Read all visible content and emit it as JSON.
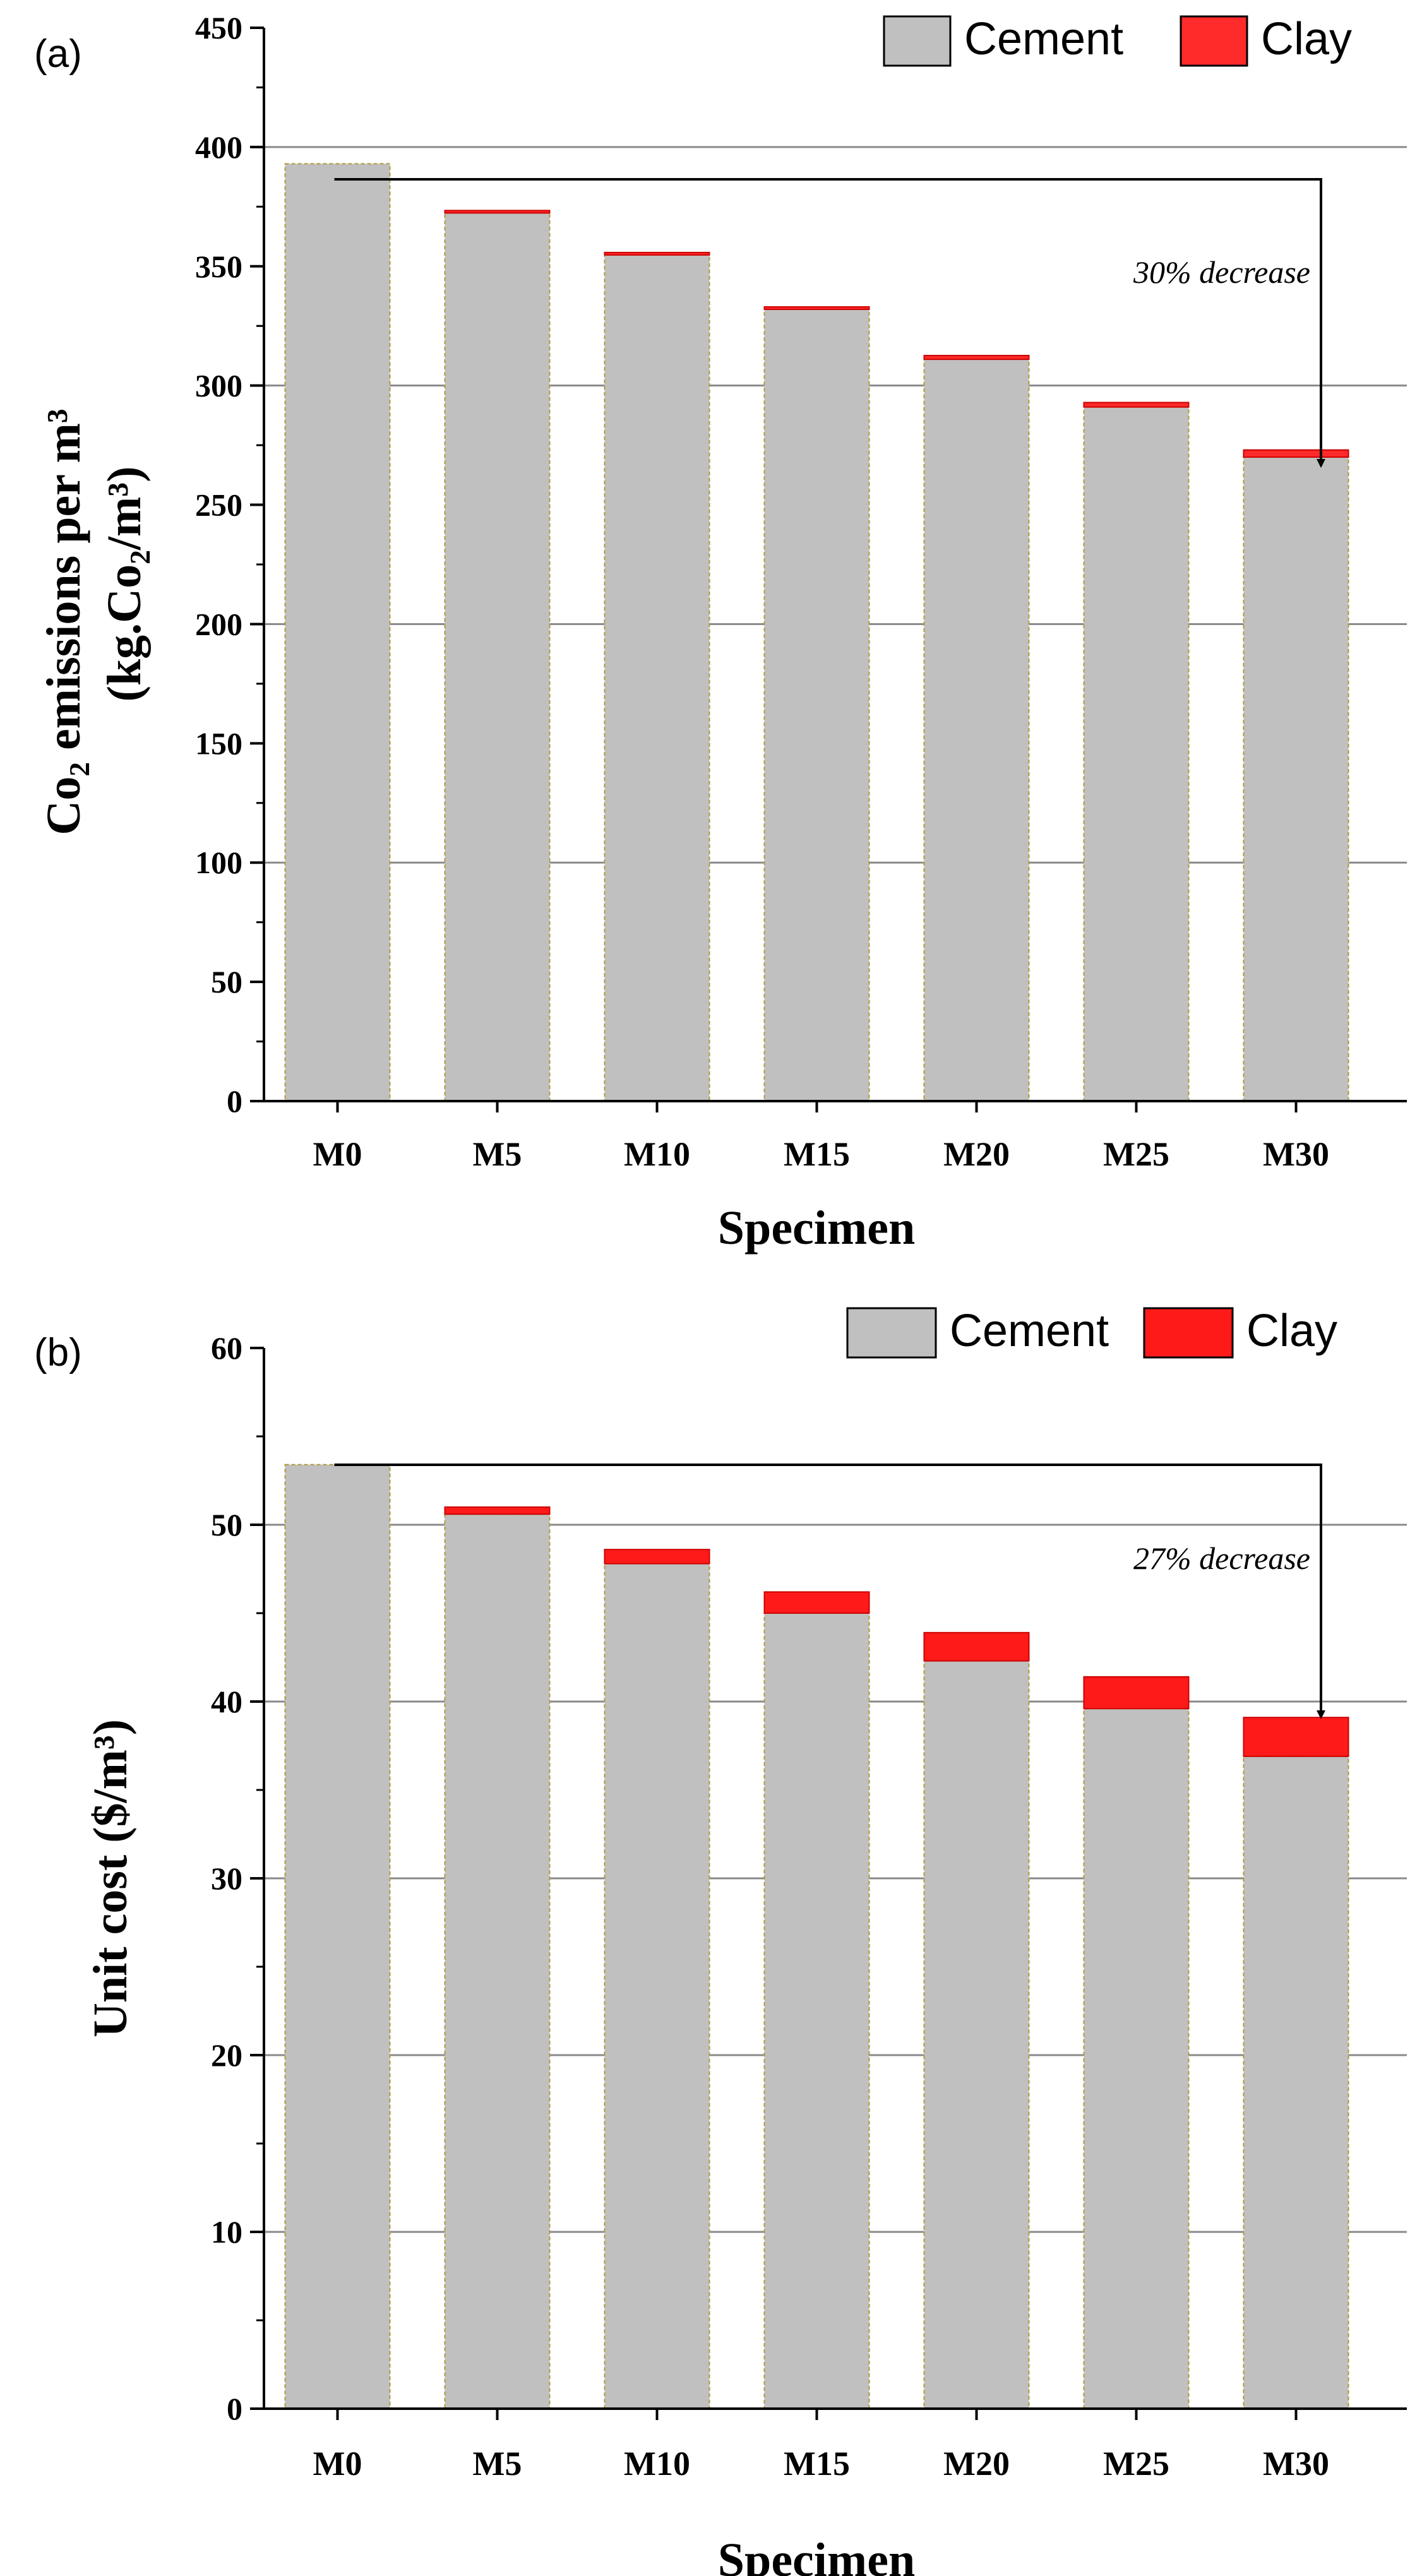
{
  "chart_data": [
    {
      "type": "bar",
      "stacked": true,
      "panel_label": "(a)",
      "categories": [
        "M0",
        "M5",
        "M10",
        "M15",
        "M20",
        "M25",
        "M30"
      ],
      "series": [
        {
          "name": "Cement",
          "values": [
            393,
            373,
            355,
            332,
            311,
            291,
            270
          ]
        },
        {
          "name": "Clay",
          "values": [
            0,
            0.4,
            0.8,
            1.0,
            1.6,
            1.9,
            3.0
          ]
        }
      ],
      "colors": {
        "Cement": "#c0c0c0",
        "Clay": "#ff2a2a"
      },
      "xlabel": "Specimen",
      "ylabel_line1": "Co₂ emissions per m³",
      "ylabel_line2": "(kg.Co₂/m³)",
      "ylim": [
        0,
        450
      ],
      "yticks": [
        0,
        50,
        100,
        150,
        200,
        250,
        300,
        350,
        400,
        450
      ],
      "gridlines": [
        100,
        200,
        300,
        400
      ],
      "grid": "horizontal major",
      "legend_position": "top-right",
      "annotation": {
        "text": "30% decrease",
        "from": "M0",
        "to": "M30"
      }
    },
    {
      "type": "bar",
      "stacked": true,
      "panel_label": "(b)",
      "categories": [
        "M0",
        "M5",
        "M10",
        "M15",
        "M20",
        "M25",
        "M30"
      ],
      "series": [
        {
          "name": "Cement",
          "values": [
            53.4,
            50.6,
            47.8,
            45.0,
            42.3,
            39.6,
            36.9
          ]
        },
        {
          "name": "Clay",
          "values": [
            0,
            0.4,
            0.8,
            1.2,
            1.6,
            1.8,
            2.2
          ]
        }
      ],
      "colors": {
        "Cement": "#c0c0c0",
        "Clay": "#ff1a1a"
      },
      "xlabel": "Specimen",
      "ylabel": "Unit cost ($/m³)",
      "ylim": [
        0,
        60
      ],
      "yticks": [
        0,
        10,
        20,
        30,
        40,
        50,
        60
      ],
      "gridlines": [
        10,
        20,
        30,
        40,
        50
      ],
      "grid": "horizontal major",
      "legend_position": "top-right",
      "annotation": {
        "text": "27% decrease",
        "from": "M0",
        "to": "M30"
      }
    }
  ]
}
